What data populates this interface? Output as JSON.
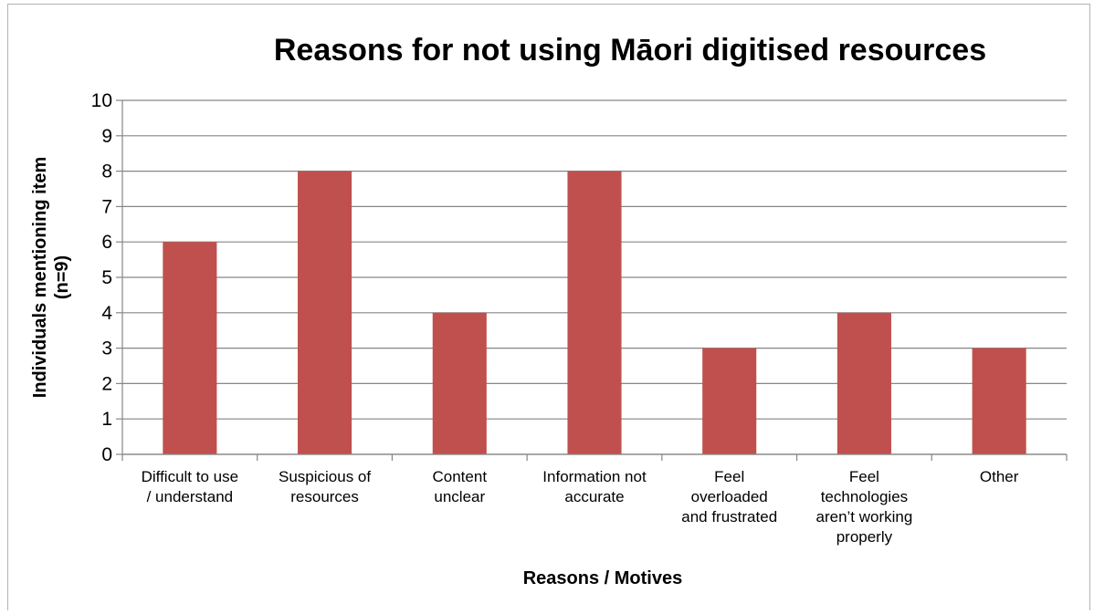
{
  "chart_data": {
    "type": "bar",
    "title": "Reasons for not using Māori digitised resources",
    "xlabel": "Reasons / Motives",
    "ylabel_lines": [
      "Individuals mentioning item",
      "(n=9)"
    ],
    "categories": [
      [
        "Difficult to use",
        "/ understand"
      ],
      [
        "Suspicious of",
        "resources"
      ],
      [
        "Content",
        "unclear"
      ],
      [
        "Information not",
        "accurate"
      ],
      [
        "Feel",
        "overloaded",
        "and frustrated"
      ],
      [
        "Feel",
        "technologies",
        "aren’t working",
        "properly"
      ],
      [
        "Other"
      ]
    ],
    "values": [
      6,
      8,
      4,
      8,
      3,
      4,
      3
    ],
    "ylim": [
      0,
      10
    ],
    "yticks": [
      0,
      1,
      2,
      3,
      4,
      5,
      6,
      7,
      8,
      9,
      10
    ],
    "grid": true,
    "legend": "none",
    "bar_color": "#c0504d",
    "grid_color": "#868686"
  }
}
